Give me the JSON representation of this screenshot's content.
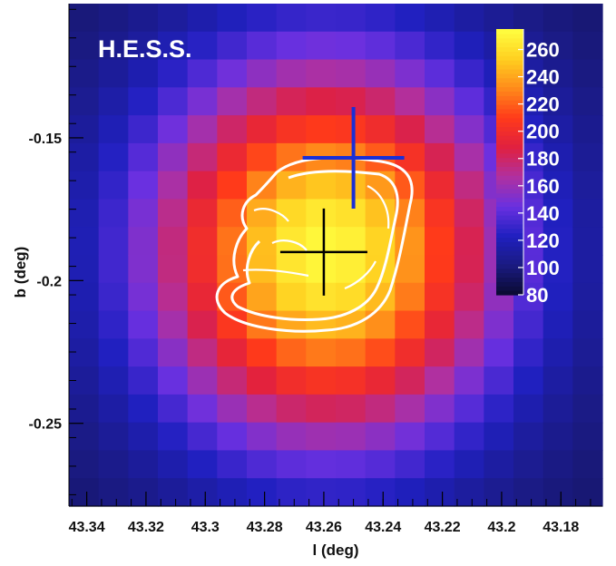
{
  "chart_data": {
    "type": "heatmap",
    "title": "H.E.S.S.",
    "xlabel": "l (deg)",
    "ylabel": "b (deg)",
    "xlim": [
      43.346,
      43.166
    ],
    "ylim": [
      -0.279,
      -0.103
    ],
    "x_ticks": [
      43.34,
      43.32,
      43.3,
      43.28,
      43.26,
      43.24,
      43.22,
      43.2,
      43.18
    ],
    "x_tick_labels": [
      "43.34",
      "43.32",
      "43.3",
      "43.28",
      "43.26",
      "43.24",
      "43.22",
      "43.2",
      "43.18"
    ],
    "y_ticks": [
      -0.15,
      -0.2,
      -0.25
    ],
    "y_tick_labels": [
      "-0.15",
      "-0.2",
      "-0.25"
    ],
    "colorbar": {
      "range": [
        80,
        275
      ],
      "ticks": [
        80,
        100,
        120,
        140,
        160,
        180,
        200,
        220,
        240,
        260
      ],
      "tick_labels": [
        "80",
        "100",
        "120",
        "140",
        "160",
        "180",
        "200",
        "220",
        "240",
        "260"
      ],
      "palette": [
        "#0a0a30",
        "#1a1a80",
        "#2020c0",
        "#6a30e0",
        "#b030a0",
        "#e02040",
        "#ff3a1a",
        "#ff8a1a",
        "#ffd020",
        "#ffff40"
      ]
    },
    "peak": {
      "l": 43.259,
      "b": -0.19,
      "value": 272
    },
    "source_markers": [
      {
        "l": 43.26,
        "b": -0.19,
        "color": "#000000"
      },
      {
        "l": 43.25,
        "b": -0.157,
        "color": "#1a2fd6"
      }
    ]
  }
}
